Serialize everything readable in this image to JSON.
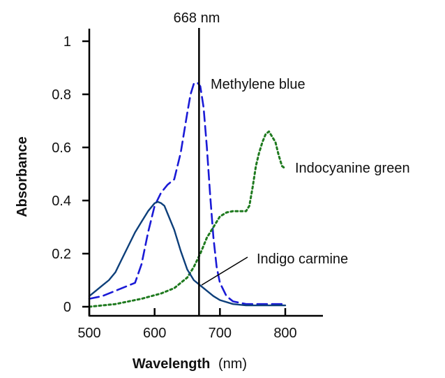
{
  "chart_data": {
    "type": "line",
    "xlabel": "Wavelength",
    "xlabel_unit": "(nm)",
    "ylabel": "Absorbance",
    "xlim": [
      500,
      800
    ],
    "ylim": [
      0,
      1
    ],
    "x_ticks": [
      500,
      600,
      700,
      800
    ],
    "x_tick_labels": [
      "500",
      "600",
      "700",
      "800"
    ],
    "y_ticks": [
      0,
      0.2,
      0.4,
      0.6,
      0.8,
      1
    ],
    "y_tick_labels": [
      "0",
      "0.2",
      "0.4",
      "0.6",
      "0.8",
      "1"
    ],
    "grid": false,
    "legend": "none (series labeled directly on chart)",
    "reference_line": {
      "x": 668,
      "label": "668 nm"
    },
    "series": [
      {
        "name": "Methylene blue",
        "color": "#1a1ad6",
        "style": "dashed",
        "x": [
          500,
          520,
          540,
          560,
          570,
          580,
          590,
          600,
          610,
          620,
          630,
          640,
          650,
          655,
          660,
          665,
          670,
          675,
          680,
          685,
          690,
          695,
          700,
          710,
          720,
          740,
          760,
          800
        ],
        "y": [
          0.03,
          0.04,
          0.06,
          0.08,
          0.09,
          0.16,
          0.28,
          0.38,
          0.43,
          0.46,
          0.48,
          0.58,
          0.73,
          0.8,
          0.84,
          0.845,
          0.83,
          0.75,
          0.6,
          0.42,
          0.26,
          0.15,
          0.09,
          0.04,
          0.02,
          0.01,
          0.01,
          0.01
        ]
      },
      {
        "name": "Indocyanine green",
        "color": "#1f7a1f",
        "style": "dotted",
        "x": [
          500,
          540,
          580,
          610,
          630,
          650,
          660,
          670,
          680,
          690,
          700,
          710,
          720,
          730,
          740,
          745,
          750,
          755,
          760,
          765,
          770,
          775,
          780,
          785,
          790,
          795,
          800
        ],
        "y": [
          0.0,
          0.01,
          0.03,
          0.05,
          0.07,
          0.11,
          0.15,
          0.2,
          0.26,
          0.3,
          0.34,
          0.355,
          0.36,
          0.36,
          0.36,
          0.38,
          0.45,
          0.53,
          0.58,
          0.62,
          0.65,
          0.66,
          0.64,
          0.62,
          0.57,
          0.53,
          0.52
        ]
      },
      {
        "name": "Indigo carmine",
        "color": "#0d3f7a",
        "style": "solid",
        "x": [
          500,
          510,
          520,
          530,
          540,
          550,
          560,
          570,
          580,
          590,
          600,
          605,
          610,
          615,
          620,
          630,
          640,
          650,
          660,
          670,
          680,
          690,
          700,
          720,
          740,
          760,
          780,
          800
        ],
        "y": [
          0.04,
          0.06,
          0.08,
          0.1,
          0.13,
          0.18,
          0.23,
          0.28,
          0.32,
          0.36,
          0.39,
          0.395,
          0.39,
          0.38,
          0.35,
          0.29,
          0.21,
          0.14,
          0.1,
          0.08,
          0.06,
          0.04,
          0.025,
          0.01,
          0.005,
          0.005,
          0.005,
          0.005
        ]
      }
    ]
  }
}
